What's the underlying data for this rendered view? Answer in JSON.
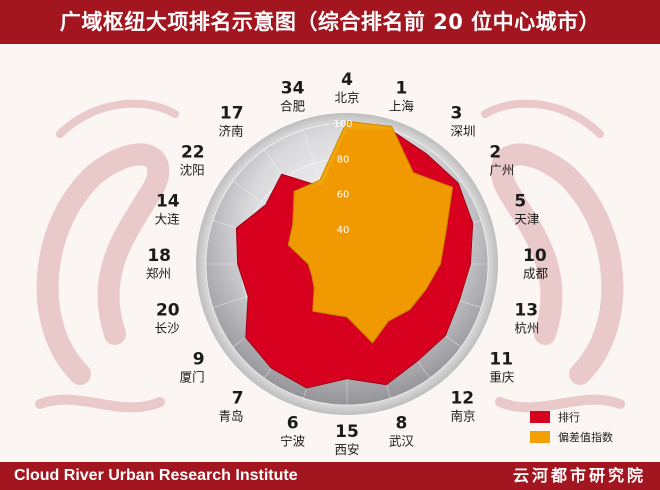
{
  "title": "广域枢纽大项排名示意图（综合排名前 20 位中心城市）",
  "footer": {
    "left": "Cloud River Urban Research Institute",
    "right": "云河都市研究院"
  },
  "colors": {
    "header": "#a3161f",
    "rank_series": "#d8001f",
    "score_series": "#f2a100"
  },
  "chart_data": {
    "type": "radar",
    "categories": [
      "北京",
      "上海",
      "深圳",
      "广州",
      "天津",
      "成都",
      "杭州",
      "重庆",
      "南京",
      "武汉",
      "西安",
      "宁波",
      "青岛",
      "厦门",
      "长沙",
      "郑州",
      "大连",
      "沈阳",
      "济南",
      "合肥"
    ],
    "ranks": [
      4,
      1,
      3,
      2,
      5,
      10,
      13,
      11,
      12,
      8,
      15,
      6,
      7,
      9,
      20,
      18,
      14,
      22,
      17,
      34
    ],
    "rank_axis_labels": [
      "4",
      "1",
      "3",
      "2",
      "5",
      "10",
      "13",
      "11",
      "12",
      "8",
      "15",
      "6",
      "7",
      "9",
      "20",
      "18",
      "14",
      "22",
      "17",
      "34"
    ],
    "rank_values": [
      96,
      100,
      97,
      98,
      95,
      90,
      87,
      89,
      88,
      92,
      85,
      94,
      93,
      91,
      79,
      82,
      86,
      77,
      83,
      66
    ],
    "series": [
      {
        "name": "排行",
        "values": [
          96,
          100,
          97,
          98,
          95,
          90,
          87,
          89,
          88,
          92,
          85,
          94,
          93,
          91,
          79,
          82,
          86,
          77,
          83,
          66
        ]
      },
      {
        "name": "偏差值指数",
        "values": [
          101,
          102,
          84,
          94,
          79,
          73,
          67,
          64,
          60,
          67,
          50,
          50,
          53,
          43,
          41,
          42,
          55,
          58,
          71,
          70
        ]
      }
    ],
    "r_ticks": [
      40,
      60,
      80,
      100
    ],
    "rlim": [
      20,
      100
    ],
    "grid": true,
    "legend_position": "bottom-right"
  }
}
